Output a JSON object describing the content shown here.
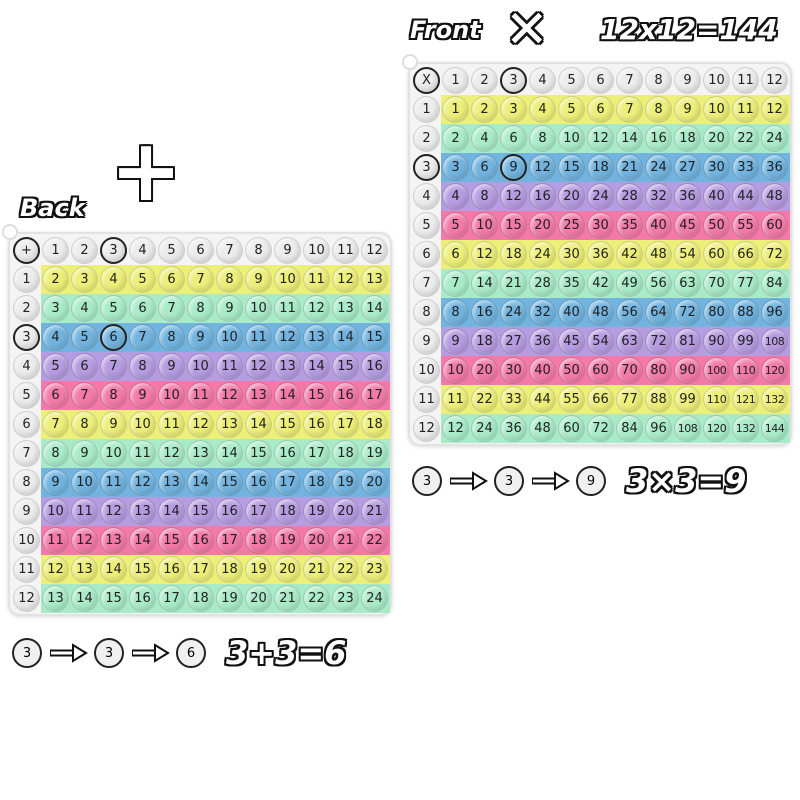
{
  "colors": {
    "yellow": "#ecef78",
    "green": "#a9ebc9",
    "blue": "#72b4df",
    "purple": "#b69ce0",
    "pink": "#f37aa8",
    "header": "#ececec"
  },
  "row_colors": [
    "yellow",
    "green",
    "blue",
    "purple",
    "pink",
    "yellow",
    "green",
    "blue",
    "purple",
    "pink",
    "yellow",
    "green"
  ],
  "front": {
    "label": "Front",
    "operator": "X",
    "big_symbol": "✕",
    "title_equation": "12x12=144",
    "example_equation": "3×3=9",
    "example_row": "3",
    "example_col": "3",
    "example_result": "9",
    "col_headers": [
      "1",
      "2",
      "3",
      "4",
      "5",
      "6",
      "7",
      "8",
      "9",
      "10",
      "11",
      "12"
    ],
    "row_headers": [
      "1",
      "2",
      "3",
      "4",
      "5",
      "6",
      "7",
      "8",
      "9",
      "10",
      "11",
      "12"
    ],
    "rows": [
      [
        1,
        2,
        3,
        4,
        5,
        6,
        7,
        8,
        9,
        10,
        11,
        12
      ],
      [
        2,
        4,
        6,
        8,
        10,
        12,
        14,
        16,
        18,
        20,
        22,
        24
      ],
      [
        3,
        6,
        9,
        12,
        15,
        18,
        21,
        24,
        27,
        30,
        33,
        36
      ],
      [
        4,
        8,
        12,
        16,
        20,
        24,
        28,
        32,
        36,
        40,
        44,
        48
      ],
      [
        5,
        10,
        15,
        20,
        25,
        30,
        35,
        40,
        45,
        50,
        55,
        60
      ],
      [
        6,
        12,
        18,
        24,
        30,
        36,
        42,
        48,
        54,
        60,
        66,
        72
      ],
      [
        7,
        14,
        21,
        28,
        35,
        42,
        49,
        56,
        63,
        70,
        77,
        84
      ],
      [
        8,
        16,
        24,
        32,
        40,
        48,
        56,
        64,
        72,
        80,
        88,
        96
      ],
      [
        9,
        18,
        27,
        36,
        45,
        54,
        63,
        72,
        81,
        90,
        99,
        108
      ],
      [
        10,
        20,
        30,
        40,
        50,
        60,
        70,
        80,
        90,
        100,
        110,
        120
      ],
      [
        11,
        22,
        33,
        44,
        55,
        66,
        77,
        88,
        99,
        110,
        121,
        132
      ],
      [
        12,
        24,
        36,
        48,
        60,
        72,
        84,
        96,
        108,
        120,
        132,
        144
      ]
    ]
  },
  "back": {
    "label": "Back",
    "operator": "+",
    "big_symbol": "+",
    "example_equation": "3+3=6",
    "example_row": "3",
    "example_col": "3",
    "example_result": "6",
    "col_headers": [
      "1",
      "2",
      "3",
      "4",
      "5",
      "6",
      "7",
      "8",
      "9",
      "10",
      "11",
      "12"
    ],
    "row_headers": [
      "1",
      "2",
      "3",
      "4",
      "5",
      "6",
      "7",
      "8",
      "9",
      "10",
      "11",
      "12"
    ],
    "rows": [
      [
        2,
        3,
        4,
        5,
        6,
        7,
        8,
        9,
        10,
        11,
        12,
        13
      ],
      [
        3,
        4,
        5,
        6,
        7,
        8,
        9,
        10,
        11,
        12,
        13,
        14
      ],
      [
        4,
        5,
        6,
        7,
        8,
        9,
        10,
        11,
        12,
        13,
        14,
        15
      ],
      [
        5,
        6,
        7,
        8,
        9,
        10,
        11,
        12,
        13,
        14,
        15,
        16
      ],
      [
        6,
        7,
        8,
        9,
        10,
        11,
        12,
        13,
        14,
        15,
        16,
        17
      ],
      [
        7,
        8,
        9,
        10,
        11,
        12,
        13,
        14,
        15,
        16,
        17,
        18
      ],
      [
        8,
        9,
        10,
        11,
        12,
        13,
        14,
        15,
        16,
        17,
        18,
        19
      ],
      [
        9,
        10,
        11,
        12,
        13,
        14,
        15,
        16,
        17,
        18,
        19,
        20
      ],
      [
        10,
        11,
        12,
        13,
        14,
        15,
        16,
        17,
        18,
        19,
        20,
        21
      ],
      [
        11,
        12,
        13,
        14,
        15,
        16,
        17,
        18,
        19,
        20,
        21,
        22
      ],
      [
        12,
        13,
        14,
        15,
        16,
        17,
        18,
        19,
        20,
        21,
        22,
        23
      ],
      [
        13,
        14,
        15,
        16,
        17,
        18,
        19,
        20,
        21,
        22,
        23,
        24
      ]
    ]
  }
}
